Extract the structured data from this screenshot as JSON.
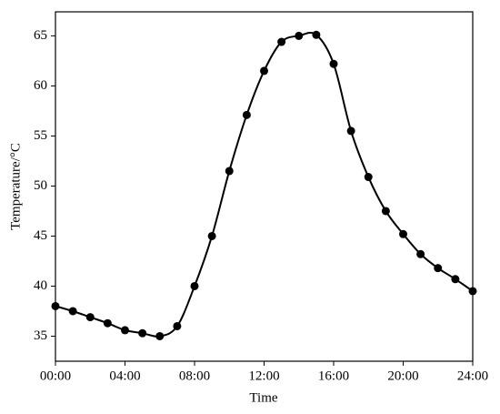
{
  "chart_data": {
    "type": "line",
    "x_label": "Time",
    "y_label": "Temperature/°C",
    "x": [
      0,
      1,
      2,
      3,
      4,
      5,
      6,
      7,
      8,
      9,
      10,
      11,
      12,
      13,
      14,
      15,
      16,
      17,
      18,
      19,
      20,
      21,
      22,
      23,
      24
    ],
    "series": [
      {
        "color": "#000000",
        "values": [
          38.0,
          37.5,
          36.9,
          36.3,
          35.6,
          35.3,
          35.0,
          36.0,
          40.0,
          45.0,
          51.5,
          57.1,
          61.5,
          64.4,
          65.0,
          65.1,
          62.2,
          55.5,
          50.9,
          47.5,
          45.2,
          43.2,
          41.8,
          40.7,
          39.5
        ]
      }
    ],
    "xlim": [
      0,
      24
    ],
    "xticks": [
      {
        "value": 0,
        "label": "00:00"
      },
      {
        "value": 4,
        "label": "04:00"
      },
      {
        "value": 8,
        "label": "08:00"
      },
      {
        "value": 12,
        "label": "12:00"
      },
      {
        "value": 16,
        "label": "16:00"
      },
      {
        "value": 20,
        "label": "20:00"
      },
      {
        "value": 24,
        "label": "24:00"
      }
    ],
    "ylim": [
      32.5,
      67.4
    ],
    "yticks": [
      35,
      40,
      45,
      50,
      55,
      60,
      65
    ]
  }
}
